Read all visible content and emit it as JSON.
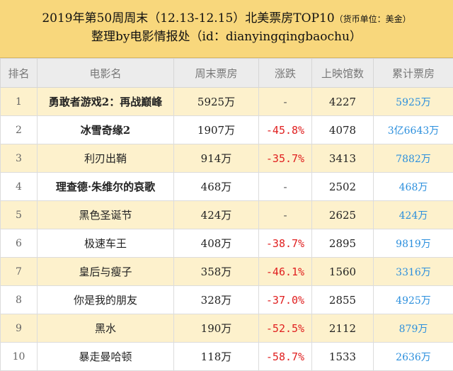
{
  "header": {
    "title": "2019年第50周周末（12.13-12.15）北美票房TOP10",
    "unit_note": "（货币单位：美金）",
    "subtitle": "整理by电影情报处（id：dianyingqingbaochu）"
  },
  "table": {
    "columns": [
      "排名",
      "电影名",
      "周末票房",
      "涨跌",
      "上映馆数",
      "累计票房"
    ],
    "rows": [
      [
        1,
        "勇敢者游戏2：再战巅峰",
        "5925万",
        "-",
        4227,
        "5925万"
      ],
      [
        2,
        "冰雪奇缘2",
        "1907万",
        "-45.8%",
        4078,
        "3亿6643万"
      ],
      [
        3,
        "利刃出鞘",
        "914万",
        "-35.7%",
        3413,
        "7882万"
      ],
      [
        4,
        "理查德·朱维尔的哀歌",
        "468万",
        "-",
        2502,
        "468万"
      ],
      [
        5,
        "黑色圣诞节",
        "424万",
        "-",
        2625,
        "424万"
      ],
      [
        6,
        "极速车王",
        "408万",
        "-38.7%",
        2895,
        "9819万"
      ],
      [
        7,
        "皇后与瘦子",
        "358万",
        "-46.1%",
        1560,
        "3316万"
      ],
      [
        8,
        "你是我的朋友",
        "328万",
        "-37.0%",
        2855,
        "4925万"
      ],
      [
        9,
        "黑水",
        "190万",
        "-52.5%",
        2112,
        "879万"
      ],
      [
        10,
        "暴走曼哈顿",
        "118万",
        "-58.7%",
        1533,
        "2636万"
      ]
    ]
  }
}
